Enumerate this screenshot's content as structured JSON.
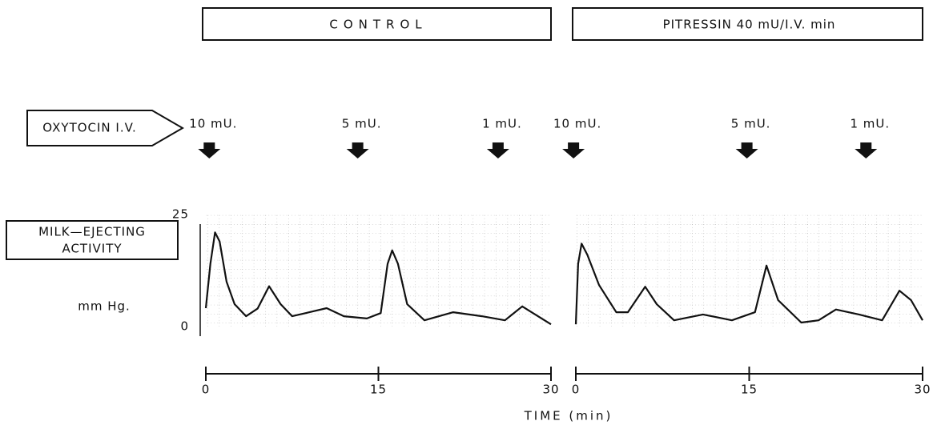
{
  "dose_label": "OXYTOCIN I.V.",
  "y_label": [
    "MILK—EJECTING",
    "ACTIVITY"
  ],
  "y_unit": "mm Hg.",
  "x_label": "TIME (min)",
  "color": "#111111",
  "chart_data": [
    {
      "type": "line",
      "title": "CONTROL",
      "doses": [
        {
          "label": "10 mU.",
          "time": 0.3
        },
        {
          "label": "5 mU.",
          "time": 13.2
        },
        {
          "label": "1 mU.",
          "time": 25.4
        }
      ],
      "x": [
        0,
        0.4,
        0.8,
        1.2,
        1.8,
        2.5,
        3.5,
        4.5,
        5.5,
        6.5,
        7.5,
        9,
        10.5,
        12,
        14,
        15.2,
        15.8,
        16.2,
        16.7,
        17.5,
        19,
        21.5,
        24,
        26,
        27.5,
        28.5,
        30
      ],
      "values": [
        4.1,
        14,
        21,
        19,
        10,
        5,
        2.3,
        4,
        9,
        5,
        2.3,
        3.2,
        4.1,
        2.3,
        1.8,
        3,
        14,
        17,
        14,
        5,
        1.4,
        3.2,
        2.3,
        1.4,
        4.5,
        2.9,
        0.5
      ],
      "xlim": [
        0,
        30
      ],
      "xticks": [
        0,
        15,
        30
      ],
      "ylim": [
        0,
        25
      ],
      "yticks": [
        0,
        25
      ]
    },
    {
      "type": "line",
      "title": "PITRESSIN  40 mU/I.V. min",
      "doses": [
        {
          "label": "10 mU.",
          "time": -0.2
        },
        {
          "label": "5 mU.",
          "time": 14.8
        },
        {
          "label": "1 mU.",
          "time": 25.1
        }
      ],
      "x": [
        0,
        0.2,
        0.5,
        1,
        2,
        3.5,
        4.5,
        6,
        7,
        8.5,
        11,
        13.5,
        15.5,
        16.5,
        17.5,
        19.5,
        21,
        22.5,
        24.5,
        26.5,
        28,
        29,
        30
      ],
      "values": [
        0.5,
        14,
        18.5,
        16,
        9.3,
        3.2,
        3.2,
        8.9,
        5,
        1.4,
        2.7,
        1.4,
        3.2,
        13.6,
        5.9,
        0.9,
        1.4,
        3.8,
        2.7,
        1.4,
        8,
        5.9,
        1.4
      ],
      "xlim": [
        0,
        30
      ],
      "xticks": [
        0,
        15,
        30
      ],
      "ylim": [
        0,
        25
      ]
    }
  ]
}
